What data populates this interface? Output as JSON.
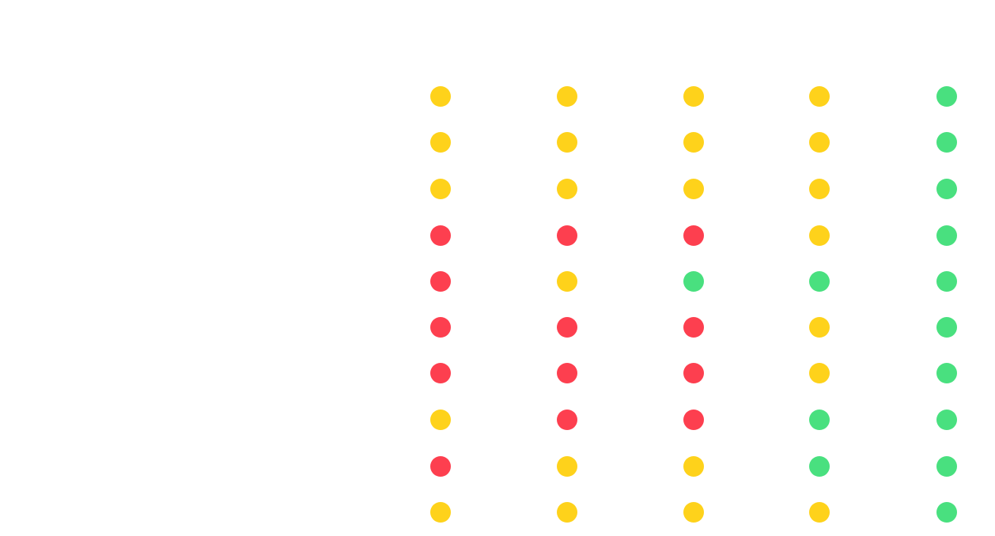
{
  "colors": {
    "red": "#fd3f4f",
    "yellow": "#fed21b",
    "green": "#49e07f",
    "faint_text": "#f3f3f3"
  },
  "matrix": [
    [
      "yellow",
      "yellow",
      "yellow",
      "yellow",
      "green"
    ],
    [
      "yellow",
      "yellow",
      "yellow",
      "yellow",
      "green"
    ],
    [
      "yellow",
      "yellow",
      "yellow",
      "yellow",
      "green"
    ],
    [
      "red",
      "red",
      "red",
      "yellow",
      "green"
    ],
    [
      "red",
      "yellow",
      "green",
      "green",
      "green"
    ],
    [
      "red",
      "red",
      "red",
      "yellow",
      "green"
    ],
    [
      "red",
      "red",
      "red",
      "yellow",
      "green"
    ],
    [
      "yellow",
      "red",
      "red",
      "green",
      "green"
    ],
    [
      "red",
      "yellow",
      "yellow",
      "green",
      "green"
    ],
    [
      "yellow",
      "yellow",
      "yellow",
      "yellow",
      "green"
    ]
  ]
}
